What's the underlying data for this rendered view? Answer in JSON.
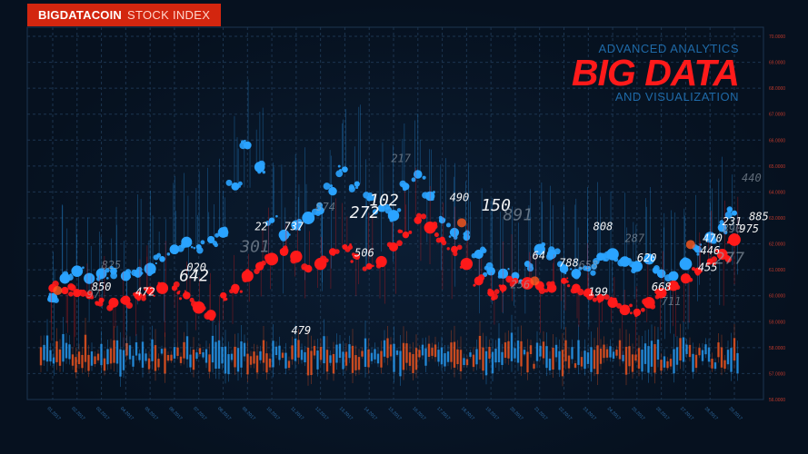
{
  "header": {
    "brand": "BIGDATACOIN",
    "subtitle": "STOCK INDEX"
  },
  "headline": {
    "top": "ADVANCED ANALYTICS",
    "big": "BIG DATA",
    "bottom": "AND VISUALIZATION"
  },
  "colors": {
    "background": "#06111f",
    "grid": "#1c3550",
    "blue": "#2aa3ff",
    "red": "#ff1a1a",
    "orange": "#ff5a1f",
    "badge": "#d3260f"
  },
  "chart_data": {
    "type": "scatter",
    "title": "",
    "xlabel": "",
    "ylabel": "",
    "grid": true,
    "y_tick_labels": [
      "70.0000",
      "69.0000",
      "68.0000",
      "67.0000",
      "66.0000",
      "65.0000",
      "64.0000",
      "63.0000",
      "62.0000",
      "61.0000",
      "60.0000",
      "59.0000",
      "58.0000",
      "57.0000",
      "56.0000"
    ],
    "x_tick_labels": [
      "01.2017",
      "02.2017",
      "03.2017",
      "04.2017",
      "05.2017",
      "06.2017",
      "07.2017",
      "08.2017",
      "09.2017",
      "10.2017",
      "11.2017",
      "12.2017",
      "13.2017",
      "14.2017",
      "15.2017",
      "16.2017",
      "17.2017",
      "18.2017",
      "19.2017",
      "20.2017",
      "21.2017",
      "22.2017",
      "23.2017",
      "24.2017",
      "25.2017",
      "26.2017",
      "27.2017",
      "28.2017",
      "29.2017"
    ],
    "ylim": [
      56,
      71
    ],
    "series": [
      {
        "color": "#2aa3ff",
        "x": [
          0,
          0.5,
          1,
          1.5,
          2,
          2.5,
          3,
          3.5,
          4,
          4.5,
          5,
          5.5,
          6,
          6.5,
          7,
          7.5,
          8,
          8.5,
          9,
          9.5,
          10,
          10.5,
          11,
          11.5,
          12,
          12.5,
          13,
          13.5,
          14,
          14.5,
          15,
          15.5,
          16,
          16.5,
          17,
          17.5,
          18,
          18.5,
          19,
          19.5,
          20,
          20.5,
          21,
          21.5,
          22,
          22.5,
          23,
          23.5,
          24,
          24.5,
          25,
          25.5,
          26,
          26.5,
          27,
          27.5,
          28
        ],
        "values": [
          60.2,
          61.0,
          61.3,
          61.0,
          61.2,
          61.3,
          61.1,
          61.2,
          61.4,
          61.8,
          62.2,
          62.5,
          62.3,
          62.6,
          62.9,
          64.8,
          66.5,
          65.6,
          63.4,
          62.8,
          63.2,
          63.5,
          63.8,
          64.6,
          65.5,
          64.9,
          64.3,
          63.9,
          63.6,
          64.8,
          65.3,
          64.4,
          63.4,
          62.9,
          62.7,
          62.0,
          61.3,
          61.2,
          61.1,
          61.6,
          62.2,
          62.0,
          61.4,
          61.2,
          61.4,
          61.9,
          62.0,
          61.7,
          61.5,
          61.8,
          61.2,
          61.1,
          61.6,
          62.2,
          62.7,
          63.1,
          63.7
        ]
      },
      {
        "color": "#ff1a1a",
        "x": [
          0,
          0.5,
          1,
          1.5,
          2,
          2.5,
          3,
          3.5,
          4,
          4.5,
          5,
          5.5,
          6,
          6.5,
          7,
          7.5,
          8,
          8.5,
          9,
          9.5,
          10,
          10.5,
          11,
          11.5,
          12,
          12.5,
          13,
          13.5,
          14,
          14.5,
          15,
          15.5,
          16,
          16.5,
          17,
          17.5,
          18,
          18.5,
          19,
          19.5,
          20,
          20.5,
          21,
          21.5,
          22,
          22.5,
          23,
          23.5,
          24,
          24.5,
          25,
          25.5,
          26,
          26.5,
          27,
          27.5,
          28
        ],
        "values": [
          60.6,
          60.5,
          60.4,
          60.3,
          60.1,
          60.0,
          60.1,
          60.3,
          60.5,
          60.6,
          60.6,
          60.3,
          59.8,
          59.5,
          60.3,
          60.6,
          61.1,
          61.5,
          61.8,
          62.1,
          61.9,
          61.4,
          61.6,
          62.1,
          62.3,
          61.9,
          61.5,
          61.7,
          62.3,
          62.8,
          63.4,
          63.1,
          62.6,
          62.2,
          61.6,
          60.9,
          60.4,
          60.6,
          60.9,
          60.8,
          60.7,
          60.6,
          60.9,
          60.6,
          60.4,
          60.2,
          60.0,
          59.7,
          59.6,
          60.0,
          60.4,
          60.7,
          61.0,
          61.3,
          61.7,
          62.0,
          62.6
        ]
      }
    ],
    "annotations": [
      {
        "text": "825",
        "x": 2.0,
        "y": 61.4
      },
      {
        "text": "850",
        "x": 1.6,
        "y": 60.5
      },
      {
        "text": "472",
        "x": 3.4,
        "y": 60.3
      },
      {
        "text": "97",
        "x": 1.4,
        "y": 60.2
      },
      {
        "text": "642",
        "x": 5.2,
        "y": 60.9
      },
      {
        "text": "020",
        "x": 5.5,
        "y": 61.3
      },
      {
        "text": "301",
        "x": 7.7,
        "y": 62.1
      },
      {
        "text": "22",
        "x": 8.3,
        "y": 63.0
      },
      {
        "text": "737",
        "x": 9.5,
        "y": 63.0
      },
      {
        "text": "874",
        "x": 10.8,
        "y": 63.8
      },
      {
        "text": "272",
        "x": 12.2,
        "y": 63.5
      },
      {
        "text": "102",
        "x": 13.0,
        "y": 64.0
      },
      {
        "text": "217",
        "x": 13.9,
        "y": 65.8
      },
      {
        "text": "490",
        "x": 16.3,
        "y": 64.2
      },
      {
        "text": "150",
        "x": 17.6,
        "y": 63.8
      },
      {
        "text": "891",
        "x": 18.5,
        "y": 63.4
      },
      {
        "text": "506",
        "x": 12.4,
        "y": 61.9
      },
      {
        "text": "479",
        "x": 9.8,
        "y": 58.7
      },
      {
        "text": "256",
        "x": 18.8,
        "y": 60.6
      },
      {
        "text": "64",
        "x": 19.7,
        "y": 61.8
      },
      {
        "text": "788",
        "x": 20.8,
        "y": 61.5
      },
      {
        "text": "658",
        "x": 21.6,
        "y": 61.4
      },
      {
        "text": "199",
        "x": 22.0,
        "y": 60.3
      },
      {
        "text": "808",
        "x": 22.2,
        "y": 63.0
      },
      {
        "text": "287",
        "x": 23.5,
        "y": 62.5
      },
      {
        "text": "620",
        "x": 24.0,
        "y": 61.7
      },
      {
        "text": "668",
        "x": 24.6,
        "y": 60.5
      },
      {
        "text": "711",
        "x": 25.0,
        "y": 59.9
      },
      {
        "text": "455",
        "x": 26.5,
        "y": 61.3
      },
      {
        "text": "446",
        "x": 26.6,
        "y": 62.0
      },
      {
        "text": "277",
        "x": 27.2,
        "y": 61.6
      },
      {
        "text": "470",
        "x": 26.7,
        "y": 62.5
      },
      {
        "text": "231",
        "x": 27.5,
        "y": 63.2
      },
      {
        "text": "890",
        "x": 27.5,
        "y": 62.9
      },
      {
        "text": "975",
        "x": 28.2,
        "y": 62.9
      },
      {
        "text": "885",
        "x": 28.6,
        "y": 63.4
      },
      {
        "text": "440",
        "x": 28.3,
        "y": 65.0
      }
    ]
  }
}
